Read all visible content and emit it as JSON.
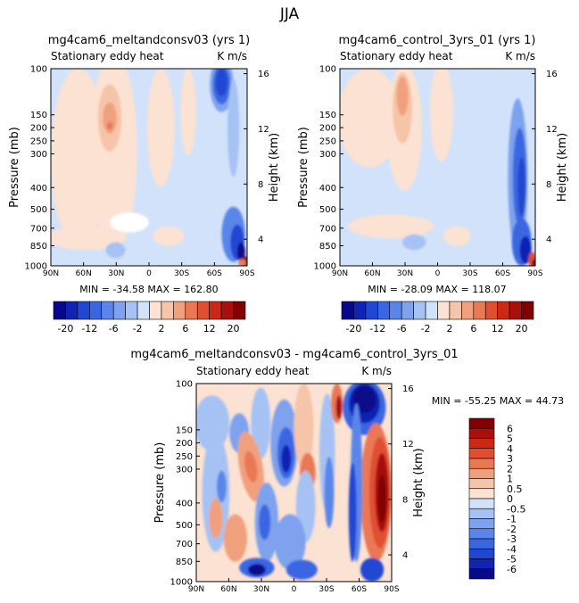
{
  "page_title": "JJA",
  "panels": [
    {
      "title": "mg4cam6_meltandconsv03 (yrs 1)",
      "left_label": "Stationary eddy heat",
      "right_label": "K m/s",
      "stats": "MIN = -34.58   MAX = 162.80"
    },
    {
      "title": "mg4cam6_control_3yrs_01 (yrs 1)",
      "left_label": "Stationary eddy heat",
      "right_label": "K m/s",
      "stats": "MIN = -28.09   MAX = 118.07"
    },
    {
      "title": "mg4cam6_meltandconsv03 - mg4cam6_control_3yrs_01",
      "left_label": "Stationary eddy heat",
      "right_label": "K m/s",
      "stats": "MIN = -55.25   MAX =  44.73"
    }
  ],
  "palette": {
    "neg": [
      "#08088c",
      "#1024b4",
      "#2046d2",
      "#3a66e2",
      "#5a86ea",
      "#7ea2ee",
      "#a6c2f4",
      "#d2e2fa"
    ],
    "pos": [
      "#fbe2d2",
      "#f6c4a8",
      "#f0a07c",
      "#ea7854",
      "#e05030",
      "#cc2816",
      "#a8100c",
      "#820000"
    ]
  },
  "colorbar_top": {
    "labels": [
      "-20",
      "-12",
      "-6",
      "-2",
      "2",
      "6",
      "12",
      "20"
    ]
  },
  "colorbar_diff": {
    "labels": [
      "6",
      "5",
      "4",
      "3",
      "2",
      "1",
      "0.5",
      "0",
      "-0.5",
      "-1",
      "-2",
      "-3",
      "-4",
      "-5",
      "-6"
    ]
  },
  "chart_data": [
    {
      "type": "heatmap",
      "title": "mg4cam6_meltandconsv03 (yrs 1)",
      "subtitle": "Stationary eddy heat",
      "units": "K m/s",
      "xlabel": "",
      "ylabel": "Pressure (mb)",
      "ylabel_right": "Height (km)",
      "x_ticks": [
        "90N",
        "60N",
        "30N",
        "0",
        "30S",
        "60S",
        "90S"
      ],
      "y_ticks": [
        "100",
        "150",
        "200",
        "250",
        "300",
        "400",
        "500",
        "700",
        "850",
        "1000"
      ],
      "y_right_ticks": [
        "16",
        "12",
        "8",
        "4"
      ],
      "levels": [
        -20,
        -16,
        -12,
        -8,
        -6,
        -4,
        -2,
        -1,
        1,
        2,
        4,
        6,
        8,
        12,
        16,
        20
      ],
      "min": -34.58,
      "max": 162.8
    },
    {
      "type": "heatmap",
      "title": "mg4cam6_control_3yrs_01 (yrs 1)",
      "subtitle": "Stationary eddy heat",
      "units": "K m/s",
      "xlabel": "",
      "ylabel": "Pressure (mb)",
      "ylabel_right": "Height (km)",
      "x_ticks": [
        "90N",
        "60N",
        "30N",
        "0",
        "30S",
        "60S",
        "90S"
      ],
      "y_ticks": [
        "100",
        "150",
        "200",
        "250",
        "300",
        "400",
        "500",
        "700",
        "850",
        "1000"
      ],
      "y_right_ticks": [
        "16",
        "12",
        "8",
        "4"
      ],
      "levels": [
        -20,
        -16,
        -12,
        -8,
        -6,
        -4,
        -2,
        -1,
        1,
        2,
        4,
        6,
        8,
        12,
        16,
        20
      ],
      "min": -28.09,
      "max": 118.07
    },
    {
      "type": "heatmap",
      "title": "mg4cam6_meltandconsv03 - mg4cam6_control_3yrs_01",
      "subtitle": "Stationary eddy heat",
      "units": "K m/s",
      "xlabel": "",
      "ylabel": "Pressure (mb)",
      "ylabel_right": "Height (km)",
      "x_ticks": [
        "90N",
        "60N",
        "30N",
        "0",
        "30S",
        "60S",
        "90S"
      ],
      "y_ticks": [
        "100",
        "150",
        "200",
        "250",
        "300",
        "400",
        "500",
        "700",
        "850",
        "1000"
      ],
      "y_right_ticks": [
        "16",
        "12",
        "8",
        "4"
      ],
      "levels": [
        -6,
        -5,
        -4,
        -3,
        -2,
        -1,
        -0.5,
        0,
        0.5,
        1,
        2,
        3,
        4,
        5,
        6
      ],
      "min": -55.25,
      "max": 44.73
    }
  ]
}
